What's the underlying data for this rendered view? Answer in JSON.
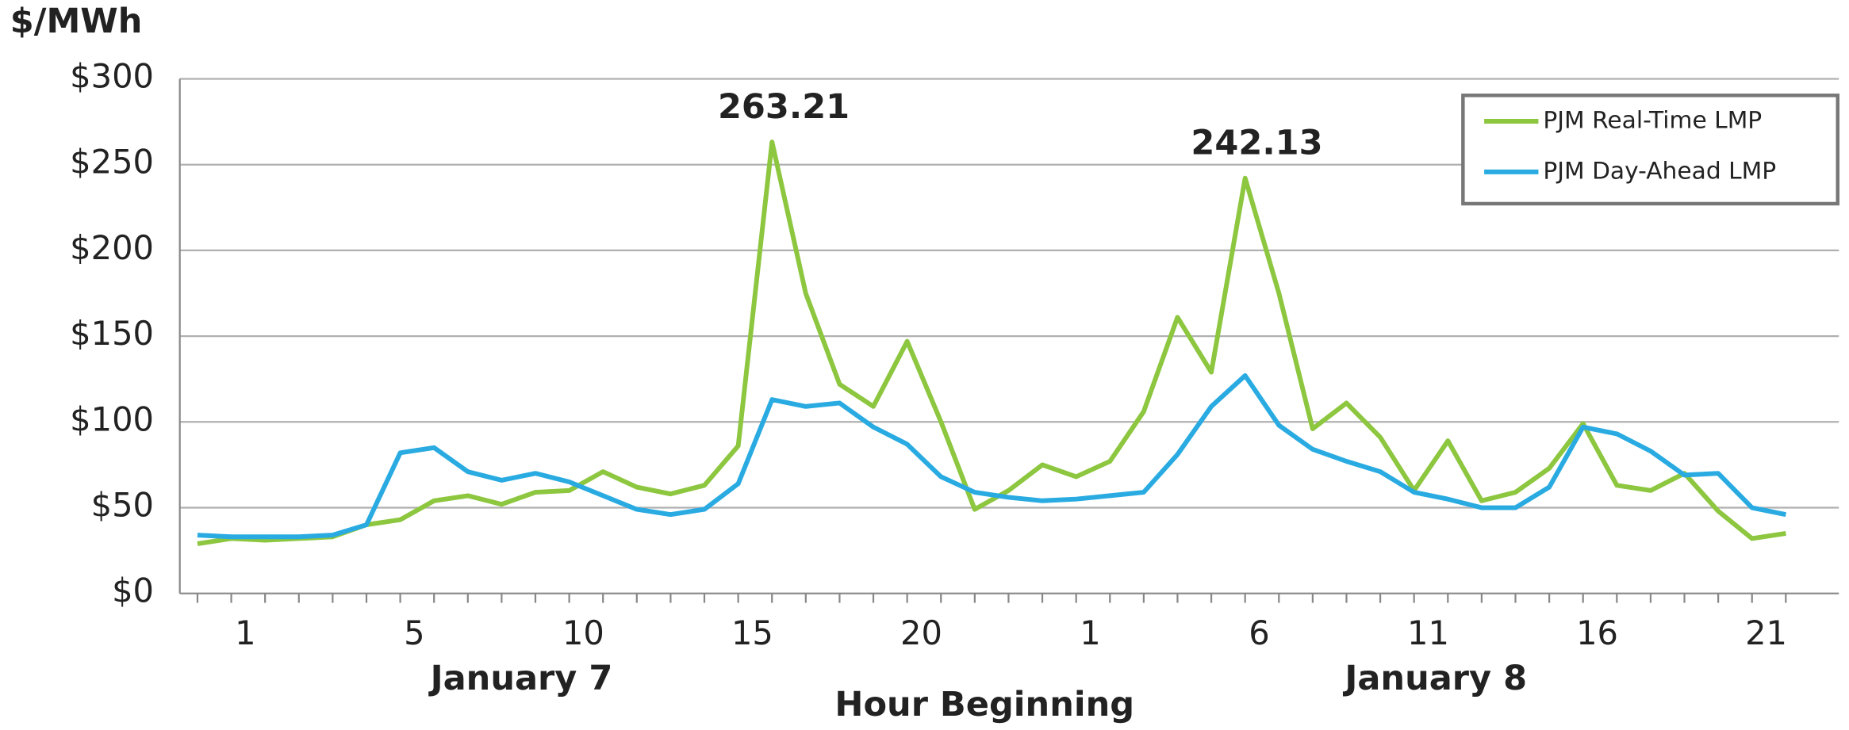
{
  "chart_data": {
    "type": "line",
    "y_label": "$/MWh",
    "x_label": "Hour Beginning",
    "day_labels": [
      "January 7",
      "January 8"
    ],
    "categories": [
      null,
      "1",
      null,
      null,
      null,
      null,
      "5",
      null,
      null,
      null,
      null,
      "10",
      null,
      null,
      null,
      null,
      "15",
      null,
      null,
      null,
      null,
      "20",
      null,
      null,
      null,
      null,
      "1",
      null,
      null,
      null,
      null,
      "6",
      null,
      null,
      null,
      null,
      "11",
      null,
      null,
      null,
      null,
      "16",
      null,
      null,
      null,
      null,
      "21",
      null
    ],
    "series": [
      {
        "name": "PJM Real-Time LMP",
        "color": "#8dc63f",
        "values": [
          29,
          32,
          31,
          32,
          33,
          40,
          43,
          54,
          57,
          52,
          59,
          60,
          71,
          62,
          58,
          63,
          86,
          263.21,
          175,
          122,
          109,
          147,
          100,
          49,
          60,
          75,
          68,
          77,
          106,
          161,
          129,
          242.13,
          175,
          96,
          111,
          91,
          60,
          89,
          54,
          59,
          73,
          99,
          63,
          60,
          70,
          48,
          32,
          35
        ]
      },
      {
        "name": "PJM Day-Ahead LMP",
        "color": "#29abe2",
        "values": [
          34,
          33,
          33,
          33,
          34,
          40,
          82,
          85,
          71,
          66,
          70,
          65,
          57,
          49,
          46,
          49,
          64,
          113,
          109,
          111,
          97,
          87,
          68,
          59,
          56,
          54,
          55,
          57,
          59,
          81,
          109,
          127,
          98,
          84,
          77,
          71,
          59,
          55,
          50,
          50,
          62,
          97,
          93,
          83,
          69,
          70,
          50,
          46
        ]
      }
    ],
    "annotated_points": [
      [
        0,
        17
      ],
      [
        0,
        31
      ]
    ],
    "ylim": [
      0,
      300
    ],
    "yticks": [
      {
        "value": 0,
        "label": "$0"
      },
      {
        "value": 50,
        "label": "$50"
      },
      {
        "value": 100,
        "label": "$100"
      },
      {
        "value": 150,
        "label": "$150"
      },
      {
        "value": 200,
        "label": "$200"
      },
      {
        "value": 250,
        "label": "$250"
      },
      {
        "value": 300,
        "label": "$300"
      }
    ],
    "grid": true,
    "legend": "upper right"
  }
}
